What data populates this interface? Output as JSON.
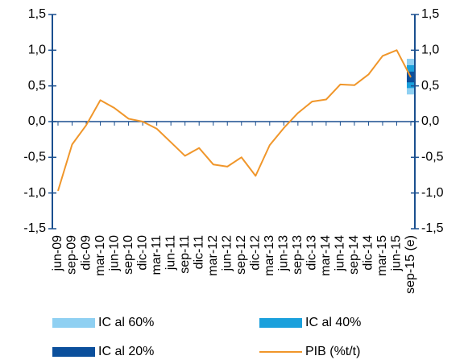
{
  "chart_data": {
    "type": "line",
    "categories": [
      "jun-09",
      "sep-09",
      "dic-09",
      "mar-10",
      "jun-10",
      "sep-10",
      "dic-10",
      "mar-11",
      "jun-11",
      "sep-11",
      "dic-11",
      "mar-12",
      "jun-12",
      "sep-12",
      "dic-12",
      "mar-13",
      "jun-13",
      "sep-13",
      "dic-13",
      "mar-14",
      "jun-14",
      "sep-14",
      "dic-14",
      "mar-15",
      "jun-15",
      "sep-15 (e)"
    ],
    "series": [
      {
        "name": "PIB (%t/t)",
        "color": "#f0962a",
        "values": [
          -0.97,
          -0.32,
          -0.05,
          0.3,
          0.19,
          0.04,
          0.0,
          -0.1,
          -0.29,
          -0.48,
          -0.37,
          -0.6,
          -0.63,
          -0.5,
          -0.76,
          -0.33,
          -0.09,
          0.12,
          0.28,
          0.31,
          0.52,
          0.51,
          0.66,
          0.92,
          1.0,
          0.62
        ]
      }
    ],
    "intervals": [
      {
        "name": "IC al 60%",
        "color": "#8fd0f2",
        "low": 0.38,
        "high": 0.88
      },
      {
        "name": "IC al 40%",
        "color": "#1aa0dc",
        "low": 0.47,
        "high": 0.79
      },
      {
        "name": "IC al 20%",
        "color": "#0b4f9c",
        "low": 0.55,
        "high": 0.7
      }
    ],
    "ylim": [
      -1.5,
      1.5
    ],
    "yticks": [
      {
        "value": -1.5,
        "label": "-1,5"
      },
      {
        "value": -1,
        "label": "-1,0"
      },
      {
        "value": -0.5,
        "label": "-0,5"
      },
      {
        "value": 0,
        "label": "0,0"
      },
      {
        "value": 0.5,
        "label": "0,5"
      },
      {
        "value": 1,
        "label": "1,0"
      },
      {
        "value": 1.5,
        "label": "1,5"
      }
    ],
    "y2lim": [
      -1.5,
      1.5
    ],
    "y2ticks": [
      {
        "value": -1.5,
        "label": "-1,5"
      },
      {
        "value": -1,
        "label": "-1,0"
      },
      {
        "value": -0.5,
        "label": "-0,5"
      },
      {
        "value": 0,
        "label": "0,0"
      },
      {
        "value": 0.5,
        "label": "0,5"
      },
      {
        "value": 1,
        "label": "1,0"
      },
      {
        "value": 1.5,
        "label": "1,5"
      }
    ],
    "axis_color": "#1a4f8f"
  }
}
